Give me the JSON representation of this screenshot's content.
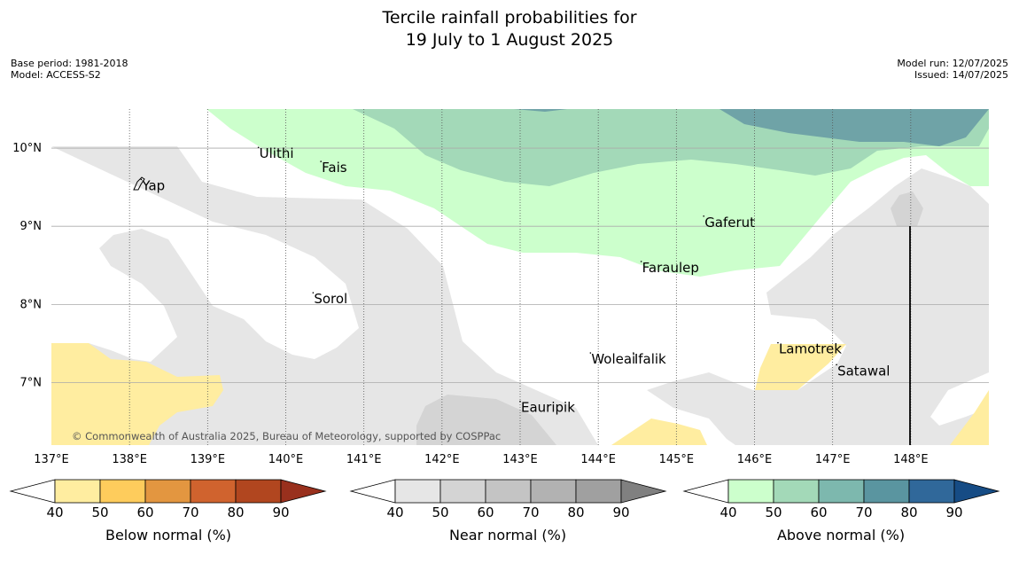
{
  "title": {
    "line1": "Tercile rainfall probabilities for",
    "line2": "19 July to 1 August 2025"
  },
  "meta_left": {
    "base_period": "Base period: 1981-2018",
    "model": "Model: ACCESS-S2"
  },
  "meta_right": {
    "model_run": "Model run: 12/07/2025",
    "issued": "Issued: 14/07/2025"
  },
  "map": {
    "lon_range": [
      137,
      149
    ],
    "lat_range": [
      6.2,
      10.5
    ],
    "lon_ticks": [
      {
        "value": 137,
        "label": "137°E"
      },
      {
        "value": 138,
        "label": "138°E"
      },
      {
        "value": 139,
        "label": "139°E"
      },
      {
        "value": 140,
        "label": "140°E"
      },
      {
        "value": 141,
        "label": "141°E"
      },
      {
        "value": 142,
        "label": "142°E"
      },
      {
        "value": 143,
        "label": "143°E"
      },
      {
        "value": 144,
        "label": "144°E"
      },
      {
        "value": 145,
        "label": "145°E"
      },
      {
        "value": 146,
        "label": "146°E"
      },
      {
        "value": 147,
        "label": "147°E"
      },
      {
        "value": 148,
        "label": "148°E"
      }
    ],
    "lat_ticks": [
      {
        "value": 10,
        "label": "10°N"
      },
      {
        "value": 9,
        "label": "9°N"
      },
      {
        "value": 8,
        "label": "8°N"
      },
      {
        "value": 7,
        "label": "7°N"
      }
    ],
    "places": [
      {
        "name": "Yap",
        "lon": 138.15,
        "lat": 9.52
      },
      {
        "name": "Ulithi",
        "lon": 139.65,
        "lat": 9.93
      },
      {
        "name": "Fais",
        "lon": 140.45,
        "lat": 9.75
      },
      {
        "name": "Gaferut",
        "lon": 145.35,
        "lat": 9.05
      },
      {
        "name": "Faraulep",
        "lon": 144.55,
        "lat": 8.47
      },
      {
        "name": "Sorol",
        "lon": 140.35,
        "lat": 8.07
      },
      {
        "name": "Woleai",
        "lon": 143.9,
        "lat": 7.3
      },
      {
        "name": "Ifalik",
        "lon": 144.45,
        "lat": 7.3
      },
      {
        "name": "Lamotrek",
        "lon": 146.3,
        "lat": 7.43
      },
      {
        "name": "Satawal",
        "lon": 147.05,
        "lat": 7.15
      },
      {
        "name": "Eauripik",
        "lon": 143.0,
        "lat": 6.68
      }
    ],
    "copyright": "© Commonwealth of Australia 2025, Bureau of Meteorology, supported by COSPPac"
  },
  "colorbars": [
    {
      "label": "Below normal (%)",
      "colors": [
        "#ffeda0",
        "#fecc5c",
        "#e39640",
        "#d0632e",
        "#b1461f",
        "#99301d"
      ]
    },
    {
      "label": "Near normal (%)",
      "colors": [
        "#e6e6e6",
        "#d4d4d4",
        "#c4c4c4",
        "#b2b2b2",
        "#a0a0a0",
        "#808080"
      ]
    },
    {
      "label": "Above normal (%)",
      "colors": [
        "#ccffcc",
        "#a3d9b8",
        "#7db8ae",
        "#5a95a0",
        "#30689a",
        "#164c85"
      ]
    }
  ],
  "colorbar_ticks": [
    "40",
    "50",
    "60",
    "70",
    "80",
    "90"
  ]
}
